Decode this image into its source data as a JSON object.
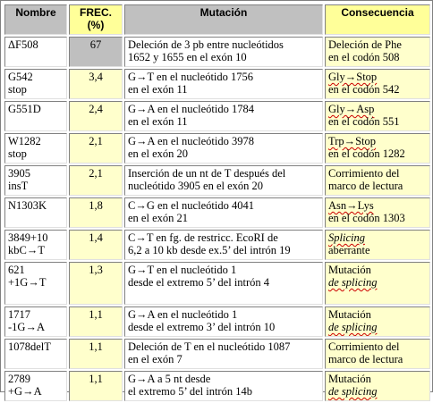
{
  "headers": {
    "nombre": "Nombre",
    "frec_line1": "FREC.",
    "frec_line2": "(%)",
    "mutacion": "Mutación",
    "consecuencia": "Consecuencia"
  },
  "rows": [
    {
      "name": [
        "ΔF508"
      ],
      "freq": "67",
      "mut": [
        "Deleción de 3 pb entre nucleótidos",
        "1652 y 1655 en el exón 10"
      ],
      "cons": [
        "Deleción de Phe",
        "en el codón 508"
      ]
    },
    {
      "name": [
        "G542",
        "stop"
      ],
      "freq": "3,4",
      "mut": [
        "G→T en el nucleótido 1756",
        "en el exón 11"
      ],
      "cons": [
        "Gly→Stop",
        "en el codón 542"
      ]
    },
    {
      "name": [
        "G551D"
      ],
      "freq": "2,4",
      "mut": [
        "G→A en el nucleótido 1784",
        "en el exón 11"
      ],
      "cons": [
        "Gly→Asp",
        "en el codón 551"
      ]
    },
    {
      "name": [
        "W1282",
        "stop"
      ],
      "freq": "2,1",
      "mut": [
        "G→A en el nucleótido 3978",
        "en el exón 20"
      ],
      "cons": [
        "Trp→Stop",
        "en el codón 1282"
      ]
    },
    {
      "name": [
        "3905",
        "insT"
      ],
      "freq": "2,1",
      "mut": [
        "Inserción de un nt de T después del",
        "nucleótido 3905 en el exón 20"
      ],
      "cons": [
        "Corrimiento del",
        "marco de lectura"
      ]
    },
    {
      "name": [
        "N1303K"
      ],
      "freq": "1,8",
      "mut": [
        "C→G en el nucleótido 4041",
        "en el exón 21"
      ],
      "cons": [
        "Asn→Lys",
        "en el codón 1303"
      ]
    },
    {
      "name": [
        "3849+10",
        "kbC→T"
      ],
      "freq": "1,4",
      "mut": [
        "C→T en fg. de restricc. EcoRI de",
        "6,2 a 10 kb desde ex.5’ del intrón 19"
      ],
      "cons": [
        "Splicing",
        "aberrante"
      ]
    },
    {
      "name": [
        "621",
        "+1G→T"
      ],
      "freq": "1,3",
      "mut": [
        "G→T en el nucleótido 1",
        "desde el extremo 5’ del intrón 4"
      ],
      "cons": [
        "Mutación",
        "de splicing"
      ]
    },
    {
      "name": [
        "1717",
        "-1G→A"
      ],
      "freq": "1,1",
      "mut": [
        "G→A en el nucleótido 1",
        "desde el extremo 3’ del intrón 10"
      ],
      "cons": [
        "Mutación",
        "de splicing"
      ]
    },
    {
      "name": [
        "1078delT"
      ],
      "freq": "1,1",
      "mut": [
        "Deleción de T en el nucleótido 1087",
        "en el exón 7"
      ],
      "cons": [
        "Corrimiento del",
        "marco de lectura"
      ]
    },
    {
      "name": [
        "2789",
        "+G→A"
      ],
      "freq": "1,1",
      "mut": [
        "G→A a 5 nt desde",
        "el extremo 5’ del intrón 14b"
      ],
      "cons": [
        "Mutación",
        "de splicing"
      ]
    }
  ]
}
